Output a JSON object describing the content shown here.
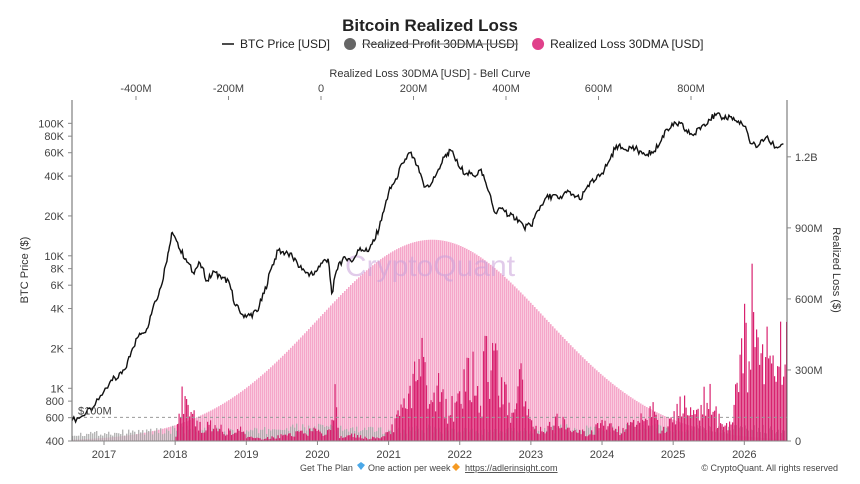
{
  "chart_data": {
    "type": "bar",
    "title": "Bitcoin Realized Loss",
    "legend": {
      "placement": "top-center",
      "items": [
        {
          "label": "BTC Price [USD]",
          "symbol": "line",
          "color": "#111111",
          "strikethrough": false
        },
        {
          "label": "Realized Profit 30DMA [USD]",
          "symbol": "circle",
          "color": "#666666",
          "strikethrough": true
        },
        {
          "label": "Realized Loss 30DMA [USD]",
          "symbol": "circle",
          "color": "#e0408a",
          "strikethrough": false
        }
      ]
    },
    "top_axis": {
      "label": "Realized Loss 30DMA [USD] - Bell Curve",
      "ticks": [
        -400,
        -200,
        0,
        200,
        400,
        600,
        800
      ],
      "tick_labels": [
        "-400M",
        "-200M",
        "0",
        "200M",
        "400M",
        "600M",
        "800M"
      ]
    },
    "x_axis": {
      "tick_labels": [
        "2017",
        "2018",
        "2019",
        "2020",
        "2021",
        "2022",
        "2023",
        "2024",
        "2025",
        "2026"
      ],
      "range": [
        2016.55,
        2026.6
      ]
    },
    "y_left": {
      "label": "BTC Price ($)",
      "scale": "log",
      "range": [
        400,
        150000
      ],
      "ticks": [
        400,
        600,
        800,
        1000,
        2000,
        4000,
        6000,
        8000,
        10000,
        20000,
        40000,
        60000,
        80000,
        100000
      ],
      "tick_labels": [
        "400",
        "600",
        "800",
        "1K",
        "2K",
        "4K",
        "6K",
        "8K",
        "10K",
        "20K",
        "40K",
        "60K",
        "80K",
        "100K"
      ]
    },
    "y_right": {
      "label": "Realized Loss ($)",
      "range": [
        0,
        1440
      ],
      "ticks": [
        0,
        300,
        600,
        900,
        1200
      ],
      "tick_labels": [
        "0",
        "300M",
        "600M",
        "900M",
        "1.2B"
      ]
    },
    "reference_line": {
      "label": "$100M",
      "value": 100
    },
    "watermark": "CryptoQuant",
    "btc_price": {
      "name": "BTC Price [USD]",
      "color": "#111111",
      "x": [
        2016.55,
        2016.7,
        2016.85,
        2017.0,
        2017.1,
        2017.2,
        2017.3,
        2017.4,
        2017.5,
        2017.6,
        2017.7,
        2017.8,
        2017.9,
        2017.96,
        2018.05,
        2018.15,
        2018.25,
        2018.35,
        2018.45,
        2018.55,
        2018.65,
        2018.75,
        2018.85,
        2018.95,
        2019.05,
        2019.15,
        2019.25,
        2019.35,
        2019.45,
        2019.55,
        2019.65,
        2019.75,
        2019.85,
        2019.95,
        2020.05,
        2020.15,
        2020.2,
        2020.3,
        2020.4,
        2020.5,
        2020.6,
        2020.7,
        2020.8,
        2020.9,
        2021.0,
        2021.1,
        2021.2,
        2021.3,
        2021.4,
        2021.5,
        2021.6,
        2021.7,
        2021.8,
        2021.88,
        2022.0,
        2022.1,
        2022.2,
        2022.3,
        2022.4,
        2022.5,
        2022.6,
        2022.7,
        2022.8,
        2022.9,
        2023.0,
        2023.1,
        2023.2,
        2023.3,
        2023.4,
        2023.5,
        2023.6,
        2023.7,
        2023.8,
        2023.9,
        2024.0,
        2024.1,
        2024.2,
        2024.3,
        2024.4,
        2024.5,
        2024.6,
        2024.7,
        2024.8,
        2024.9,
        2025.0,
        2025.1,
        2025.2,
        2025.3,
        2025.4,
        2025.5,
        2025.6,
        2025.7,
        2025.8,
        2025.9,
        2026.0,
        2026.1,
        2026.2,
        2026.3,
        2026.45,
        2026.55
      ],
      "values": [
        570,
        620,
        720,
        950,
        1150,
        1200,
        1400,
        2000,
        2600,
        2800,
        4300,
        5800,
        10500,
        15000,
        11500,
        9500,
        7500,
        8800,
        6500,
        7600,
        6700,
        6500,
        4200,
        3600,
        3550,
        3800,
        5200,
        8000,
        11000,
        10500,
        9800,
        8200,
        7500,
        7200,
        8800,
        9500,
        5200,
        8800,
        9500,
        9200,
        11500,
        10800,
        13000,
        18500,
        30000,
        38000,
        50000,
        60000,
        48000,
        33000,
        35000,
        45000,
        58000,
        62000,
        46000,
        42000,
        40000,
        45000,
        31000,
        21000,
        23000,
        20000,
        19500,
        16500,
        16800,
        22000,
        27000,
        28500,
        27000,
        30000,
        29000,
        26500,
        34000,
        37000,
        42000,
        52000,
        68000,
        64000,
        66000,
        63000,
        58000,
        61000,
        68000,
        90000,
        96000,
        100000,
        85000,
        83000,
        95000,
        107000,
        115000,
        110000,
        112000,
        102000,
        95000,
        70000,
        68000,
        78000,
        66000,
        70000
      ]
    },
    "bell_curve": {
      "center_x": 2021.6,
      "sigma": 1.6,
      "peak": 850,
      "color": "#f5a6c9"
    },
    "realized_loss": {
      "name": "Realized Loss 30DMA [USD]",
      "color": "#d8226f",
      "x": [
        2016.55,
        2017.0,
        2017.5,
        2017.9,
        2018.0,
        2018.08,
        2018.1,
        2018.2,
        2018.3,
        2018.4,
        2018.5,
        2018.6,
        2018.7,
        2018.8,
        2018.9,
        2019.0,
        2019.2,
        2019.4,
        2019.6,
        2019.8,
        2020.0,
        2020.1,
        2020.2,
        2020.25,
        2020.3,
        2020.5,
        2020.7,
        2020.9,
        2021.0,
        2021.2,
        2021.3,
        2021.4,
        2021.45,
        2021.5,
        2021.6,
        2021.7,
        2021.8,
        2021.9,
        2022.0,
        2022.05,
        2022.1,
        2022.2,
        2022.3,
        2022.35,
        2022.4,
        2022.45,
        2022.5,
        2022.6,
        2022.7,
        2022.8,
        2022.85,
        2022.9,
        2023.0,
        2023.1,
        2023.2,
        2023.3,
        2023.4,
        2023.5,
        2023.6,
        2023.7,
        2023.8,
        2023.9,
        2024.0,
        2024.1,
        2024.2,
        2024.3,
        2024.4,
        2024.5,
        2024.6,
        2024.7,
        2024.8,
        2024.9,
        2025.0,
        2025.1,
        2025.2,
        2025.3,
        2025.4,
        2025.5,
        2025.6,
        2025.7,
        2025.8,
        2025.85,
        2025.9,
        2025.95,
        2026.0,
        2026.05,
        2026.1,
        2026.15,
        2026.2,
        2026.3,
        2026.4,
        2026.45,
        2026.5,
        2026.55
      ],
      "values": [
        0,
        0,
        0,
        0,
        5,
        190,
        220,
        150,
        80,
        60,
        90,
        70,
        40,
        50,
        60,
        20,
        10,
        20,
        30,
        40,
        50,
        30,
        80,
        300,
        20,
        30,
        15,
        20,
        40,
        150,
        230,
        380,
        470,
        300,
        180,
        250,
        150,
        160,
        190,
        250,
        330,
        380,
        200,
        440,
        300,
        380,
        400,
        250,
        150,
        220,
        330,
        150,
        100,
        50,
        60,
        80,
        120,
        60,
        40,
        50,
        30,
        60,
        80,
        100,
        50,
        60,
        80,
        120,
        80,
        150,
        60,
        80,
        120,
        200,
        150,
        100,
        180,
        250,
        120,
        60,
        100,
        180,
        350,
        420,
        600,
        250,
        680,
        400,
        600,
        460,
        300,
        320,
        500,
        480
      ]
    },
    "realized_profit": {
      "name": "Realized Profit 30DMA [USD]",
      "color": "#a8a8a8",
      "x": [
        2016.55,
        2017.0,
        2017.5,
        2017.9,
        2018.0,
        2018.2,
        2018.5,
        2019.0,
        2019.5,
        2020.0,
        2020.5,
        2021.0,
        2021.5,
        2022.0,
        2022.5,
        2023.0,
        2023.5,
        2024.0,
        2024.5,
        2025.0,
        2025.5,
        2026.0,
        2026.55
      ],
      "values": [
        30,
        35,
        40,
        45,
        60,
        50,
        45,
        40,
        55,
        60,
        50,
        45,
        55,
        45,
        40,
        50,
        55,
        50,
        60,
        55,
        50,
        55,
        50
      ]
    }
  },
  "footer": {
    "plan_text": "Get The Plan",
    "plan_tagline": "One action per week",
    "plan_url": "https://adlerinsight.com",
    "copyright": "© CryptoQuant. All rights reserved"
  }
}
